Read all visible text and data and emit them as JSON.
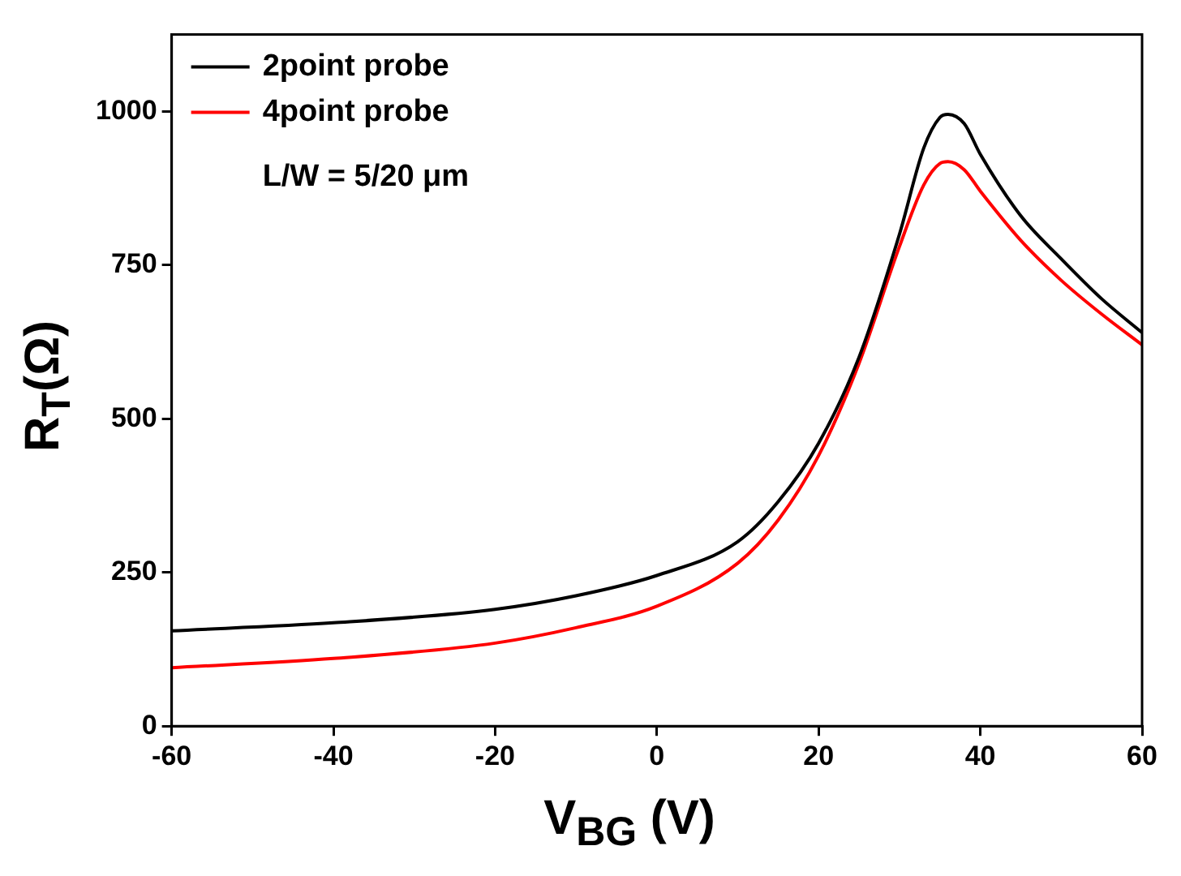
{
  "chart_data": {
    "type": "line",
    "xlabel": "V$_{BG}$ (V)",
    "ylabel": "R$_{T}$(Ω)",
    "annotations": [
      "L/W = 5/20 μm"
    ],
    "legend": "top left",
    "grid": false,
    "marker": "none",
    "line_style": "solid",
    "xlim": [
      -60,
      60
    ],
    "xticks": [
      -60,
      -40,
      -20,
      0,
      20,
      40,
      60
    ],
    "ylim": [
      0,
      1125
    ],
    "yticks": [
      0,
      250,
      500,
      750,
      1000
    ],
    "series": [
      {
        "name": "2point probe",
        "color": "#000000",
        "x": [
          -60,
          -40,
          -20,
          -10,
          0,
          10,
          15,
          20,
          25,
          30,
          33,
          35,
          36,
          38,
          40,
          45,
          50,
          55,
          60
        ],
        "values": [
          155,
          168,
          190,
          212,
          245,
          300,
          365,
          460,
          600,
          800,
          940,
          990,
          995,
          980,
          930,
          830,
          760,
          695,
          640
        ]
      },
      {
        "name": "4point probe",
        "color": "#ff0000",
        "x": [
          -60,
          -40,
          -20,
          -10,
          0,
          10,
          15,
          20,
          25,
          30,
          33,
          35,
          36,
          38,
          40,
          45,
          50,
          55,
          60
        ],
        "values": [
          95,
          110,
          135,
          160,
          195,
          265,
          335,
          440,
          590,
          780,
          880,
          915,
          918,
          905,
          870,
          790,
          725,
          670,
          620
        ]
      }
    ]
  }
}
